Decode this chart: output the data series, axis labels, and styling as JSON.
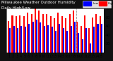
{
  "title": "Milwaukee Weather Outdoor Humidity",
  "subtitle": "Daily High/Low",
  "background_color": "#111111",
  "plot_bg_color": "#ffffff",
  "bar_width": 0.38,
  "ylim": [
    0,
    100
  ],
  "ylabel_ticks": [
    20,
    40,
    60,
    80,
    100
  ],
  "legend_high": "High",
  "legend_low": "Low",
  "color_high": "#ff0000",
  "color_low": "#0000ff",
  "days": [
    1,
    2,
    3,
    4,
    5,
    6,
    7,
    8,
    9,
    10,
    11,
    12,
    13,
    14,
    15,
    16,
    17,
    18,
    19,
    20,
    21,
    22,
    23,
    24,
    25
  ],
  "high": [
    72,
    85,
    82,
    85,
    82,
    90,
    88,
    100,
    95,
    88,
    88,
    82,
    78,
    90,
    82,
    78,
    88,
    95,
    70,
    60,
    85,
    55,
    80,
    88,
    82
  ],
  "low": [
    55,
    60,
    55,
    60,
    58,
    65,
    70,
    75,
    68,
    60,
    62,
    58,
    50,
    65,
    55,
    50,
    60,
    70,
    45,
    30,
    55,
    20,
    58,
    65,
    65
  ],
  "dashed_lines": [
    18.5
  ],
  "title_fontsize": 4.0,
  "tick_fontsize": 3.5
}
